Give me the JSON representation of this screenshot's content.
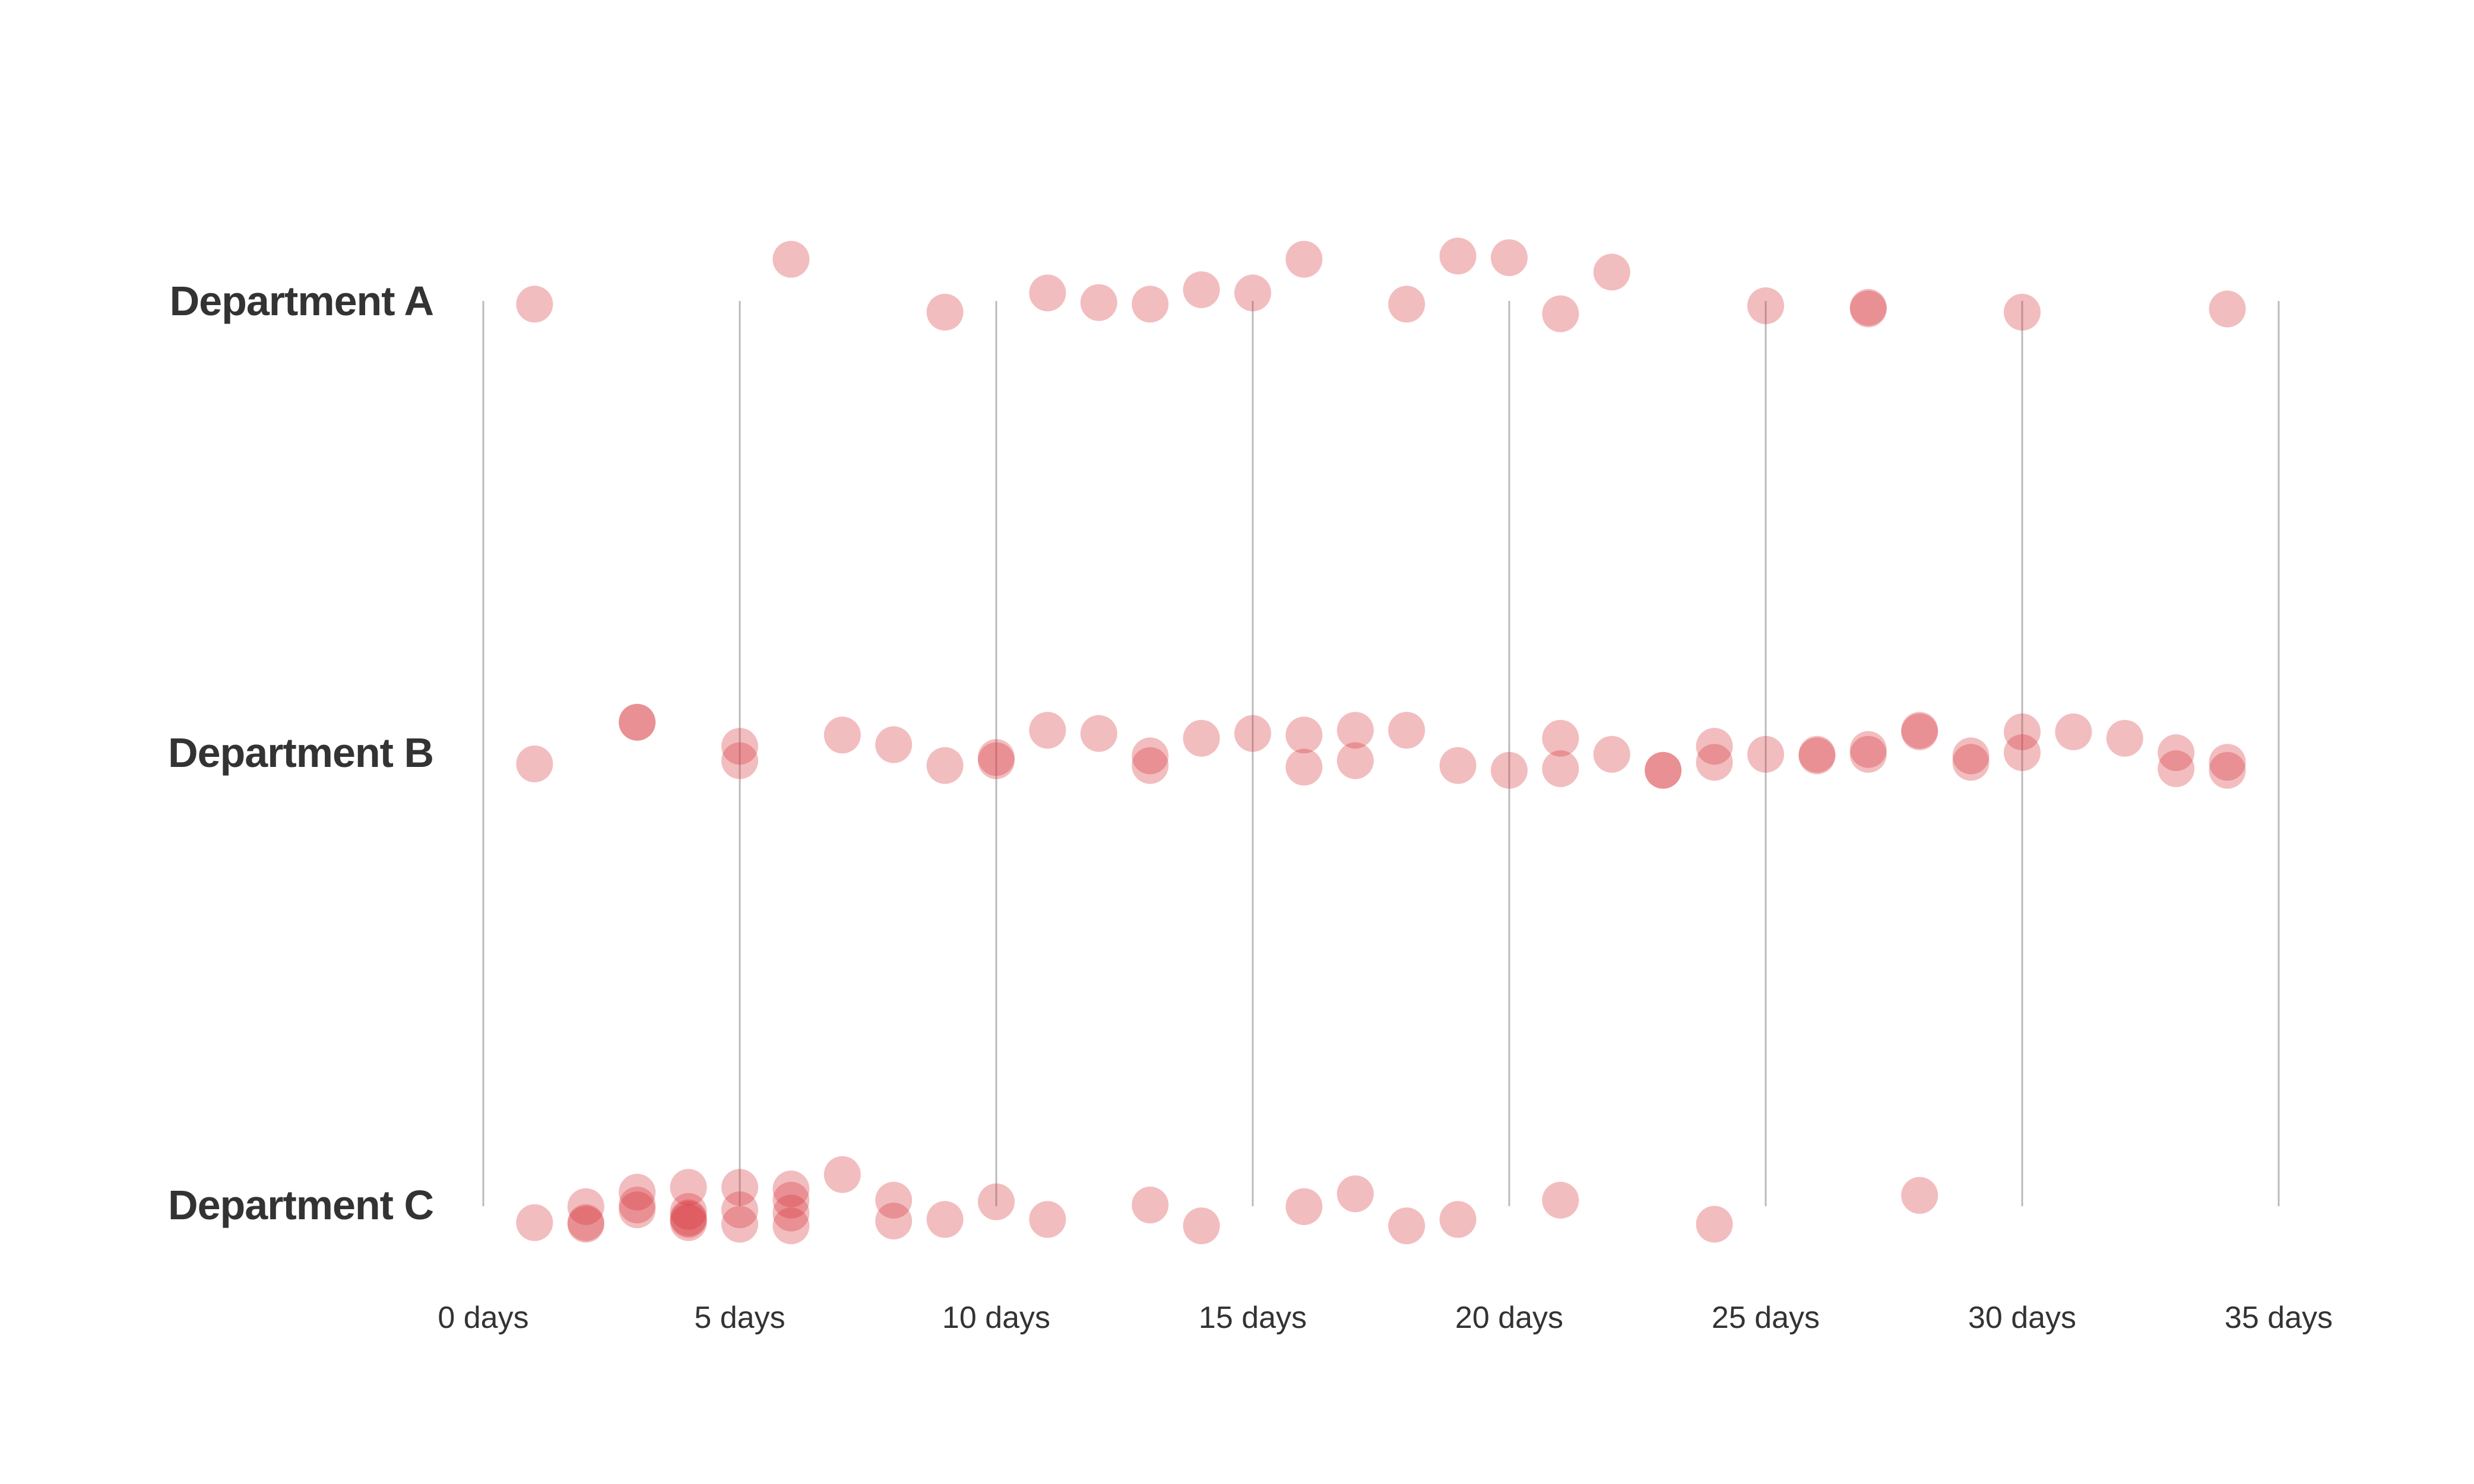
{
  "chart_data": {
    "type": "scatter",
    "subtype": "strip / jittered dot plot",
    "title": "",
    "xlabel": "",
    "ylabel": "",
    "xlim": [
      0,
      35
    ],
    "x_ticks": [
      0,
      5,
      10,
      15,
      20,
      25,
      30,
      35
    ],
    "x_tick_labels": [
      "0 days",
      "5 days",
      "10 days",
      "15 days",
      "20 days",
      "25 days",
      "30 days",
      "35 days"
    ],
    "grid": {
      "vertical": true,
      "horizontal": false,
      "color": "#bbbbbb"
    },
    "legend": null,
    "categories": [
      "Department A",
      "Department B",
      "Department C"
    ],
    "dot_color": "#d9383c",
    "dot_opacity": 0.33,
    "series": [
      {
        "name": "Department A",
        "values": [
          1,
          6,
          9,
          11,
          12,
          13,
          14,
          15,
          16,
          18,
          19,
          20,
          21,
          22,
          25,
          27,
          27,
          30,
          34
        ],
        "jitter": [
          0.02,
          -0.26,
          0.07,
          -0.05,
          0.01,
          0.02,
          -0.07,
          -0.05,
          -0.26,
          0.02,
          -0.28,
          -0.27,
          0.08,
          -0.18,
          0.03,
          0.04,
          0.05,
          0.07,
          0.05
        ]
      },
      {
        "name": "Department B",
        "values": [
          1,
          3,
          3,
          5,
          5,
          7,
          8,
          9,
          10,
          10,
          11,
          12,
          13,
          13,
          14,
          15,
          16,
          16,
          17,
          17,
          18,
          19,
          20,
          21,
          21,
          22,
          23,
          23,
          24,
          24,
          25,
          26,
          26,
          27,
          27,
          28,
          28,
          29,
          29,
          30,
          30,
          31,
          32,
          33,
          33,
          34,
          34
        ],
        "jitter": [
          0.07,
          -0.19,
          -0.19,
          -0.04,
          0.05,
          -0.11,
          -0.05,
          0.08,
          0.03,
          0.05,
          -0.14,
          -0.12,
          0.02,
          0.08,
          -0.09,
          -0.12,
          -0.11,
          0.09,
          -0.14,
          0.05,
          -0.14,
          0.08,
          0.11,
          -0.09,
          0.1,
          0.01,
          0.11,
          0.11,
          -0.04,
          0.06,
          0.01,
          0.01,
          0.02,
          -0.02,
          0.01,
          -0.14,
          -0.13,
          0.02,
          0.06,
          -0.13,
          0.0,
          -0.13,
          -0.09,
          0.0,
          0.1,
          0.06,
          0.11
        ]
      },
      {
        "name": "Department C",
        "values": [
          1,
          2,
          2,
          2,
          3,
          3,
          3,
          4,
          4,
          4,
          4,
          4,
          5,
          5,
          5,
          6,
          6,
          6,
          6,
          7,
          8,
          8,
          9,
          10,
          11,
          13,
          14,
          16,
          17,
          18,
          19,
          21,
          24,
          28
        ],
        "jitter": [
          0.11,
          0.01,
          0.12,
          0.11,
          -0.08,
          0.0,
          0.03,
          -0.11,
          0.04,
          0.08,
          0.09,
          0.11,
          -0.11,
          0.03,
          0.12,
          -0.1,
          -0.03,
          0.05,
          0.13,
          -0.19,
          -0.03,
          0.1,
          0.09,
          -0.02,
          0.09,
          0.0,
          0.13,
          0.01,
          -0.07,
          0.13,
          0.09,
          -0.03,
          0.12,
          -0.06
        ]
      }
    ]
  }
}
